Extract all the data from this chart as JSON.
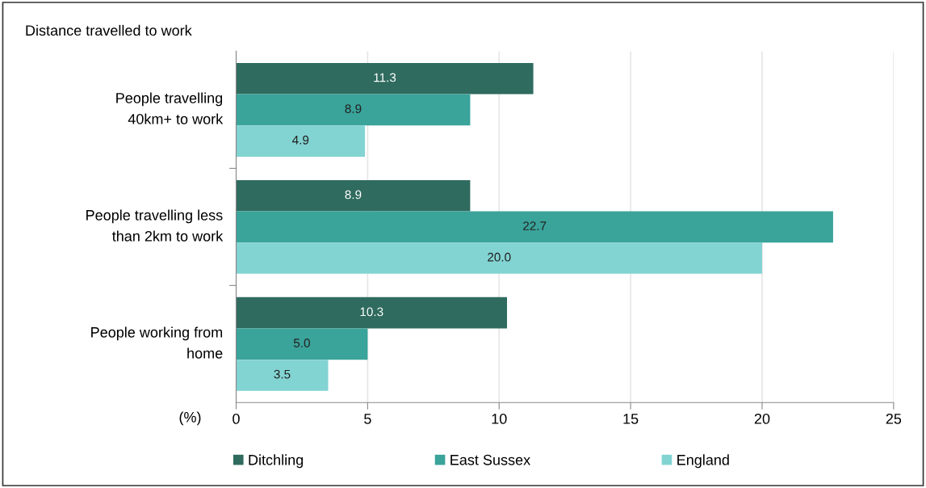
{
  "chart_data": {
    "type": "bar",
    "orientation": "horizontal",
    "title": "Distance travelled to work",
    "xlabel": "(%)",
    "categories": [
      "People travelling\n40km+ to work",
      "People travelling less\nthan 2km to work",
      "People working from\nhome"
    ],
    "series": [
      {
        "name": "Ditchling",
        "color": "#2f6b5e",
        "values": [
          11.3,
          8.9,
          10.3
        ],
        "value_labels": [
          "11.3",
          "8.9",
          "10.3"
        ]
      },
      {
        "name": "East Sussex",
        "color": "#3aa39a",
        "values": [
          8.9,
          22.7,
          5.0
        ],
        "value_labels": [
          "8.9",
          "22.7",
          "5.0"
        ]
      },
      {
        "name": "England",
        "color": "#82d4d2",
        "values": [
          4.9,
          20.0,
          3.5
        ],
        "value_labels": [
          "4.9",
          "20.0",
          "3.5"
        ]
      }
    ],
    "xlim": [
      0,
      25
    ],
    "xticks": [
      0,
      5,
      10,
      15,
      20,
      25
    ],
    "grid": "x",
    "legend": "bottom"
  }
}
